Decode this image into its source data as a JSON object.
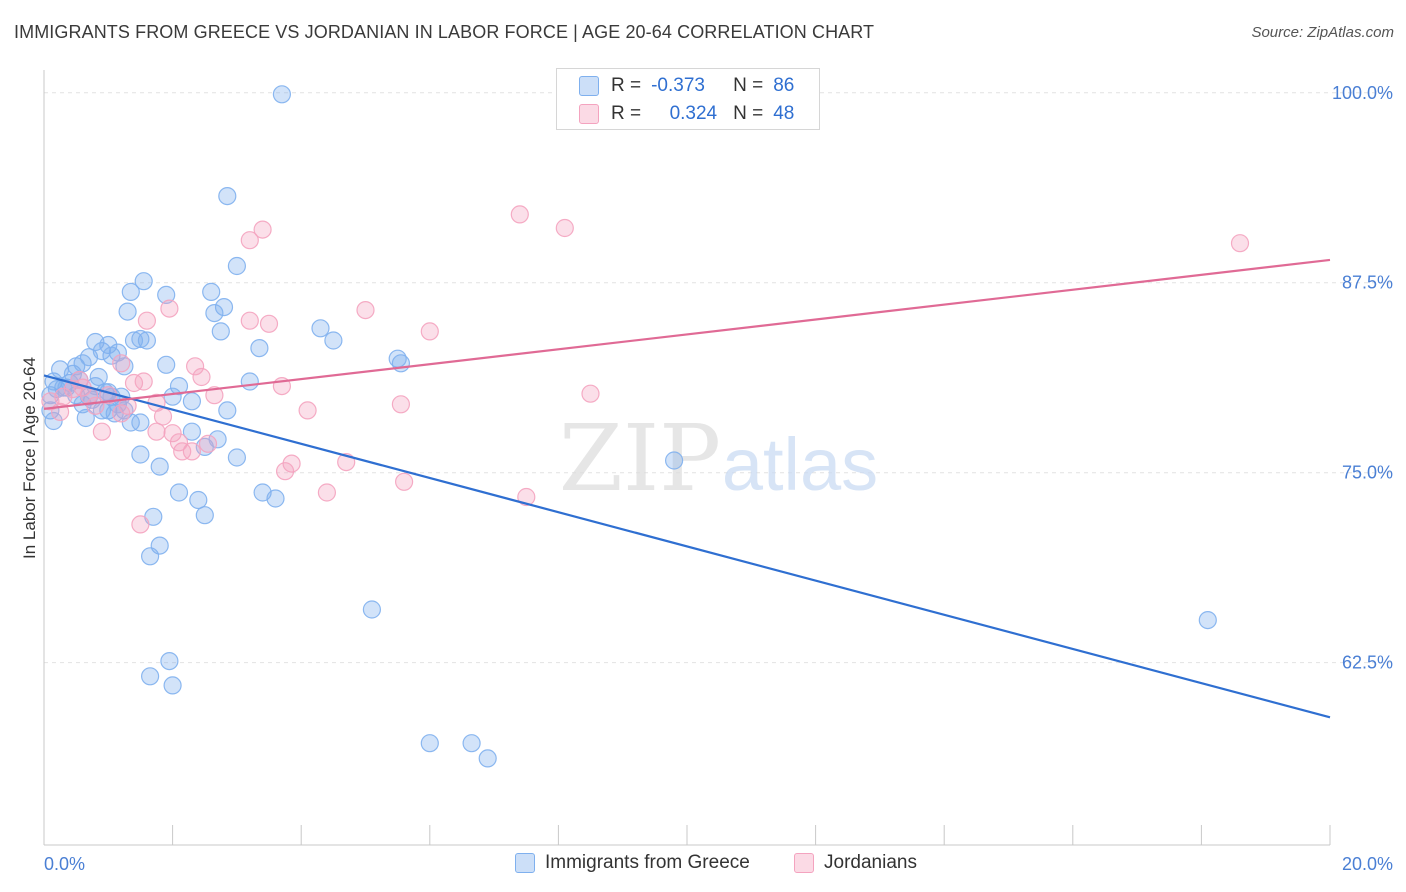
{
  "header": {
    "title": "IMMIGRANTS FROM GREECE VS JORDANIAN IN LABOR FORCE | AGE 20-64 CORRELATION CHART",
    "source": "Source: ZipAtlas.com"
  },
  "watermark": {
    "zip": "ZIP",
    "atlas": "atlas"
  },
  "stats": {
    "rows": [
      {
        "r_label": "R =",
        "r_value": "-0.373",
        "n_label": "N =",
        "n_value": "86",
        "color": "#7fb0ee"
      },
      {
        "r_label": "R =",
        "r_value": "0.324",
        "n_label": "N =",
        "n_value": "48",
        "color": "#f4a3bf"
      }
    ]
  },
  "legend": {
    "items": [
      {
        "label": "Immigrants from Greece",
        "color": "#7fb0ee"
      },
      {
        "label": "Jordanians",
        "color": "#f4a3bf"
      }
    ]
  },
  "colors": {
    "blue_point": "#7fb0ee",
    "blue_line": "#2f6fd1",
    "pink_point": "#f4a3bf",
    "pink_line": "#e06a95",
    "axis_text": "#4a7fd4",
    "grid": "#e2e2e2"
  },
  "chart_data": {
    "type": "scatter",
    "title": "IMMIGRANTS FROM GREECE VS JORDANIAN IN LABOR FORCE | AGE 20-64 CORRELATION CHART",
    "xlabel": "",
    "ylabel": "In Labor Force | Age 20-64",
    "xlim": [
      0,
      20
    ],
    "ylim": [
      50.5,
      101.5
    ],
    "x_tick_labels": [
      "0.0%",
      "20.0%"
    ],
    "y_ticks": [
      62.5,
      75.0,
      87.5,
      100.0
    ],
    "y_tick_labels": [
      "62.5%",
      "75.0%",
      "87.5%",
      "100.0%"
    ],
    "grid": true,
    "legend_position": "bottom-center",
    "series": [
      {
        "name": "Immigrants from Greece",
        "color": "#7fb0ee",
        "points": [
          [
            0.1,
            79.1
          ],
          [
            0.15,
            78.4
          ],
          [
            0.1,
            80.1
          ],
          [
            0.15,
            81.0
          ],
          [
            0.2,
            80.5
          ],
          [
            0.3,
            80.6
          ],
          [
            0.25,
            81.8
          ],
          [
            0.35,
            80.6
          ],
          [
            0.4,
            80.9
          ],
          [
            0.45,
            81.5
          ],
          [
            0.5,
            80.1
          ],
          [
            0.55,
            81.1
          ],
          [
            0.6,
            79.5
          ],
          [
            0.65,
            78.6
          ],
          [
            0.7,
            80.0
          ],
          [
            0.75,
            79.8
          ],
          [
            0.8,
            80.7
          ],
          [
            0.85,
            81.3
          ],
          [
            0.9,
            79.1
          ],
          [
            0.95,
            80.3
          ],
          [
            1.0,
            79.1
          ],
          [
            1.05,
            80.0
          ],
          [
            1.1,
            78.9
          ],
          [
            1.15,
            79.5
          ],
          [
            1.2,
            80.0
          ],
          [
            1.25,
            79.1
          ],
          [
            1.35,
            78.3
          ],
          [
            1.5,
            78.3
          ],
          [
            0.5,
            82.0
          ],
          [
            0.6,
            82.2
          ],
          [
            0.7,
            82.6
          ],
          [
            0.8,
            83.6
          ],
          [
            0.9,
            83.0
          ],
          [
            1.0,
            83.4
          ],
          [
            1.05,
            82.7
          ],
          [
            1.15,
            82.9
          ],
          [
            1.25,
            82.0
          ],
          [
            1.6,
            83.7
          ],
          [
            1.5,
            83.8
          ],
          [
            1.4,
            83.7
          ],
          [
            1.3,
            85.6
          ],
          [
            1.35,
            86.9
          ],
          [
            1.55,
            87.6
          ],
          [
            1.9,
            86.7
          ],
          [
            2.6,
            86.9
          ],
          [
            2.8,
            85.9
          ],
          [
            2.65,
            85.5
          ],
          [
            2.75,
            84.3
          ],
          [
            1.9,
            82.1
          ],
          [
            2.1,
            80.7
          ],
          [
            2.3,
            79.7
          ],
          [
            2.85,
            79.1
          ],
          [
            3.2,
            81.0
          ],
          [
            3.35,
            83.2
          ],
          [
            2.3,
            77.7
          ],
          [
            2.5,
            76.7
          ],
          [
            2.7,
            77.2
          ],
          [
            3.0,
            76.0
          ],
          [
            1.5,
            76.2
          ],
          [
            1.8,
            75.4
          ],
          [
            2.1,
            73.7
          ],
          [
            2.4,
            73.2
          ],
          [
            2.5,
            72.2
          ],
          [
            1.7,
            72.1
          ],
          [
            1.8,
            70.2
          ],
          [
            1.65,
            69.5
          ],
          [
            1.95,
            62.6
          ],
          [
            1.65,
            61.6
          ],
          [
            2.0,
            61.0
          ],
          [
            2.85,
            93.2
          ],
          [
            3.0,
            88.6
          ],
          [
            3.7,
            99.9
          ],
          [
            3.4,
            73.7
          ],
          [
            3.6,
            73.3
          ],
          [
            4.3,
            84.5
          ],
          [
            4.5,
            83.7
          ],
          [
            5.55,
            82.2
          ],
          [
            5.5,
            82.5
          ],
          [
            5.1,
            66.0
          ],
          [
            6.0,
            57.2
          ],
          [
            6.65,
            57.2
          ],
          [
            6.9,
            56.2
          ],
          [
            9.8,
            75.8
          ],
          [
            18.1,
            65.3
          ],
          [
            1.0,
            80.3
          ],
          [
            2.0,
            80.0
          ]
        ]
      },
      {
        "name": "Jordanians",
        "color": "#f4a3bf",
        "points": [
          [
            0.1,
            79.7
          ],
          [
            0.3,
            80.0
          ],
          [
            0.45,
            80.5
          ],
          [
            0.55,
            81.1
          ],
          [
            0.7,
            80.1
          ],
          [
            0.8,
            79.4
          ],
          [
            0.9,
            77.7
          ],
          [
            1.0,
            80.1
          ],
          [
            1.2,
            78.9
          ],
          [
            1.3,
            79.4
          ],
          [
            1.4,
            80.9
          ],
          [
            1.55,
            81.0
          ],
          [
            1.75,
            79.6
          ],
          [
            1.85,
            78.7
          ],
          [
            2.0,
            77.6
          ],
          [
            2.1,
            77.0
          ],
          [
            2.3,
            76.4
          ],
          [
            2.45,
            81.3
          ],
          [
            2.35,
            82.0
          ],
          [
            2.55,
            76.9
          ],
          [
            2.65,
            80.1
          ],
          [
            1.6,
            85.0
          ],
          [
            1.95,
            85.8
          ],
          [
            3.2,
            90.3
          ],
          [
            3.4,
            91.0
          ],
          [
            3.2,
            85.0
          ],
          [
            3.5,
            84.8
          ],
          [
            3.7,
            80.7
          ],
          [
            4.1,
            79.1
          ],
          [
            3.85,
            75.6
          ],
          [
            3.75,
            75.1
          ],
          [
            4.4,
            73.7
          ],
          [
            4.7,
            75.7
          ],
          [
            5.0,
            85.7
          ],
          [
            5.55,
            79.5
          ],
          [
            5.6,
            74.4
          ],
          [
            6.0,
            84.3
          ],
          [
            7.4,
            92.0
          ],
          [
            7.5,
            73.4
          ],
          [
            8.1,
            91.1
          ],
          [
            8.5,
            80.2
          ],
          [
            18.6,
            90.1
          ],
          [
            1.5,
            71.6
          ],
          [
            1.2,
            82.2
          ],
          [
            2.15,
            76.4
          ],
          [
            0.25,
            79.0
          ],
          [
            1.75,
            77.7
          ],
          [
            0.6,
            80.6
          ]
        ]
      }
    ],
    "trend_lines": [
      {
        "series": "Immigrants from Greece",
        "from": [
          0,
          81.4
        ],
        "to": [
          20,
          58.9
        ]
      },
      {
        "series": "Jordanians",
        "from": [
          0,
          79.2
        ],
        "to": [
          20,
          89.0
        ]
      }
    ]
  }
}
